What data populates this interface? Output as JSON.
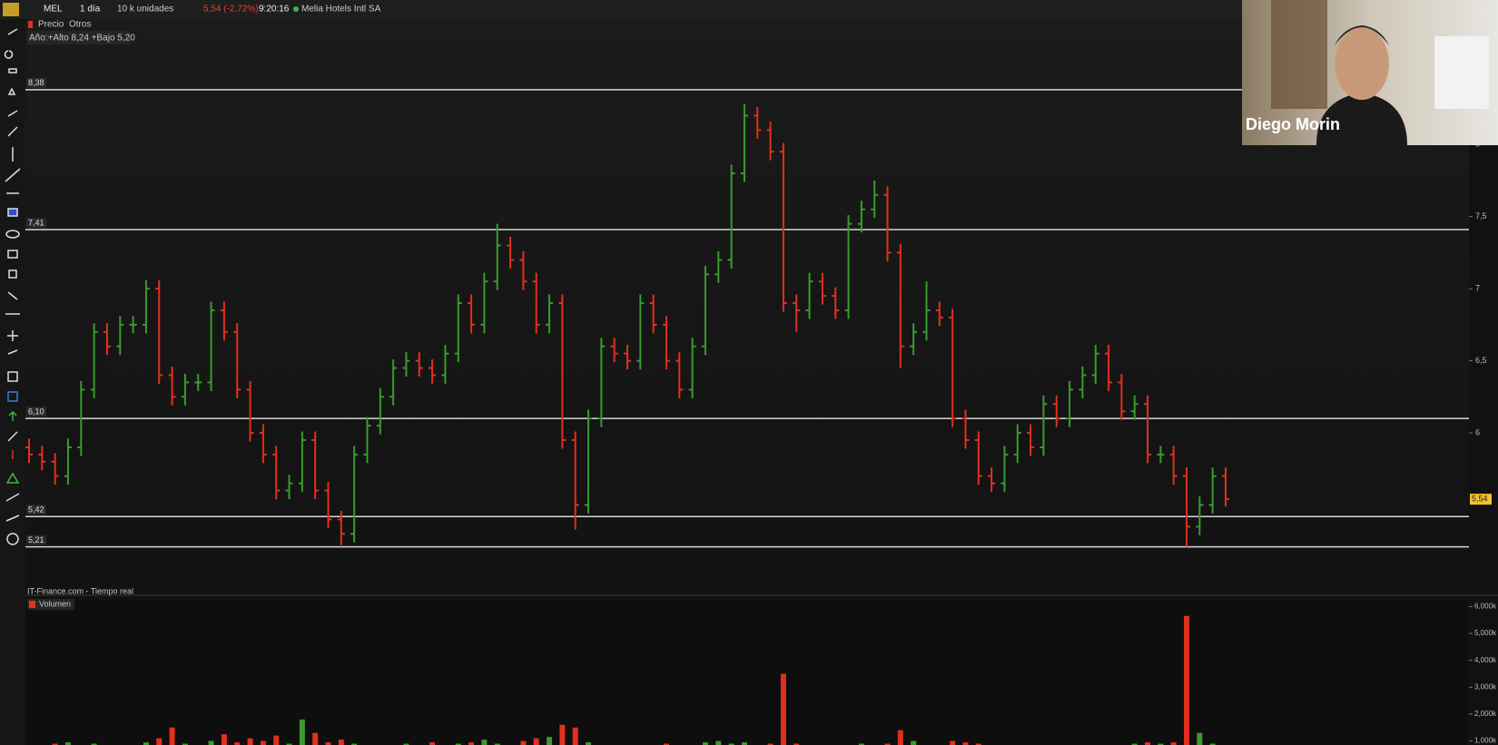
{
  "toolbar": {
    "symbol": "MEL",
    "interval": "1 día",
    "size": "10 k unidades",
    "price": "5,54 (-2,72%)",
    "time": "9:20:16",
    "name": "Melia Hotels Intl SA"
  },
  "tabs": [
    "Precio",
    "Otros"
  ],
  "chart_data": {
    "type": "ohlc",
    "annotation": "Año:+Alto 8,24 +Bajo 5,20",
    "footer": "IT-Finance.com - Tiempo real",
    "ylim": [
      4.88,
      8.87
    ],
    "yticks": [
      6,
      {
        "value": 6.5,
        "label": "6,5"
      },
      7,
      {
        "value": 7.5,
        "label": "7,5"
      },
      8
    ],
    "levels": [
      {
        "value": 8.38,
        "label": "8,38"
      },
      {
        "value": 7.41,
        "label": "7,41"
      },
      {
        "value": 6.1,
        "label": "6,10"
      },
      {
        "value": 5.42,
        "label": "5,42"
      },
      {
        "value": 5.21,
        "label": "5,21"
      }
    ],
    "last": {
      "value": 5.54,
      "label": "5,54"
    },
    "up_color": "#3a9a2e",
    "down_color": "#e0301e",
    "level_color": "#d8d8d8",
    "candles": [
      [
        5.9,
        5.96,
        5.79,
        5.85
      ],
      [
        5.85,
        5.91,
        5.74,
        5.8
      ],
      [
        5.8,
        5.86,
        5.64,
        5.7
      ],
      [
        5.7,
        5.96,
        5.64,
        5.9
      ],
      [
        5.9,
        6.36,
        5.84,
        6.3
      ],
      [
        6.3,
        6.76,
        6.24,
        6.7
      ],
      [
        6.7,
        6.76,
        6.54,
        6.6
      ],
      [
        6.6,
        6.81,
        6.54,
        6.75
      ],
      [
        6.75,
        6.81,
        6.69,
        6.75
      ],
      [
        6.75,
        7.06,
        6.69,
        7.0
      ],
      [
        7.0,
        7.06,
        6.34,
        6.4
      ],
      [
        6.4,
        6.46,
        6.19,
        6.25
      ],
      [
        6.25,
        6.41,
        6.19,
        6.35
      ],
      [
        6.35,
        6.41,
        6.29,
        6.35
      ],
      [
        6.35,
        6.91,
        6.29,
        6.85
      ],
      [
        6.85,
        6.91,
        6.64,
        6.7
      ],
      [
        6.7,
        6.76,
        6.24,
        6.3
      ],
      [
        6.3,
        6.36,
        5.94,
        6.0
      ],
      [
        6.0,
        6.06,
        5.79,
        5.85
      ],
      [
        5.85,
        5.91,
        5.54,
        5.6
      ],
      [
        5.6,
        5.71,
        5.54,
        5.65
      ],
      [
        5.65,
        6.01,
        5.59,
        5.95
      ],
      [
        5.95,
        6.01,
        5.54,
        5.6
      ],
      [
        5.6,
        5.66,
        5.34,
        5.4
      ],
      [
        5.4,
        5.46,
        5.22,
        5.3
      ],
      [
        5.3,
        5.91,
        5.24,
        5.85
      ],
      [
        5.85,
        6.11,
        5.79,
        6.05
      ],
      [
        6.05,
        6.31,
        5.99,
        6.25
      ],
      [
        6.25,
        6.51,
        6.19,
        6.45
      ],
      [
        6.45,
        6.56,
        6.39,
        6.5
      ],
      [
        6.5,
        6.56,
        6.39,
        6.45
      ],
      [
        6.45,
        6.51,
        6.34,
        6.4
      ],
      [
        6.4,
        6.61,
        6.34,
        6.55
      ],
      [
        6.55,
        6.96,
        6.49,
        6.9
      ],
      [
        6.9,
        6.96,
        6.69,
        6.75
      ],
      [
        6.75,
        7.11,
        6.69,
        7.05
      ],
      [
        7.05,
        7.45,
        6.99,
        7.3
      ],
      [
        7.3,
        7.36,
        7.14,
        7.2
      ],
      [
        7.2,
        7.26,
        6.99,
        7.05
      ],
      [
        7.05,
        7.11,
        6.69,
        6.75
      ],
      [
        6.75,
        6.96,
        6.69,
        6.9
      ],
      [
        6.9,
        6.96,
        5.89,
        5.95
      ],
      [
        5.95,
        6.01,
        5.33,
        5.5
      ],
      [
        5.5,
        6.16,
        5.44,
        6.1
      ],
      [
        6.1,
        6.66,
        6.04,
        6.6
      ],
      [
        6.6,
        6.66,
        6.49,
        6.55
      ],
      [
        6.55,
        6.61,
        6.44,
        6.5
      ],
      [
        6.5,
        6.96,
        6.44,
        6.9
      ],
      [
        6.9,
        6.96,
        6.69,
        6.75
      ],
      [
        6.75,
        6.81,
        6.44,
        6.5
      ],
      [
        6.5,
        6.56,
        6.24,
        6.3
      ],
      [
        6.3,
        6.66,
        6.24,
        6.6
      ],
      [
        6.6,
        7.16,
        6.54,
        7.1
      ],
      [
        7.1,
        7.26,
        7.04,
        7.2
      ],
      [
        7.2,
        7.86,
        7.14,
        7.8
      ],
      [
        7.8,
        8.28,
        7.74,
        8.2
      ],
      [
        8.2,
        8.26,
        8.04,
        8.1
      ],
      [
        8.1,
        8.16,
        7.89,
        7.95
      ],
      [
        7.95,
        8.01,
        6.84,
        6.9
      ],
      [
        6.9,
        6.96,
        6.7,
        6.85
      ],
      [
        6.85,
        7.11,
        6.79,
        7.05
      ],
      [
        7.05,
        7.11,
        6.89,
        6.95
      ],
      [
        6.95,
        7.01,
        6.79,
        6.85
      ],
      [
        6.85,
        7.51,
        6.79,
        7.45
      ],
      [
        7.45,
        7.61,
        7.39,
        7.55
      ],
      [
        7.55,
        7.75,
        7.49,
        7.65
      ],
      [
        7.65,
        7.71,
        7.19,
        7.25
      ],
      [
        7.25,
        7.31,
        6.45,
        6.6
      ],
      [
        6.6,
        6.76,
        6.54,
        6.7
      ],
      [
        6.7,
        7.05,
        6.64,
        6.85
      ],
      [
        6.85,
        6.91,
        6.74,
        6.8
      ],
      [
        6.8,
        6.86,
        6.04,
        6.1
      ],
      [
        6.1,
        6.16,
        5.89,
        5.95
      ],
      [
        5.95,
        6.01,
        5.64,
        5.7
      ],
      [
        5.7,
        5.76,
        5.59,
        5.65
      ],
      [
        5.65,
        5.91,
        5.59,
        5.85
      ],
      [
        5.85,
        6.06,
        5.79,
        6.0
      ],
      [
        6.0,
        6.06,
        5.84,
        5.9
      ],
      [
        5.9,
        6.26,
        5.84,
        6.2
      ],
      [
        6.2,
        6.26,
        6.04,
        6.1
      ],
      [
        6.1,
        6.36,
        6.04,
        6.3
      ],
      [
        6.3,
        6.46,
        6.24,
        6.4
      ],
      [
        6.4,
        6.61,
        6.34,
        6.55
      ],
      [
        6.55,
        6.61,
        6.29,
        6.35
      ],
      [
        6.35,
        6.41,
        6.09,
        6.15
      ],
      [
        6.15,
        6.26,
        6.09,
        6.2
      ],
      [
        6.2,
        6.26,
        5.79,
        5.85
      ],
      [
        5.85,
        5.91,
        5.79,
        5.85
      ],
      [
        5.85,
        5.91,
        5.64,
        5.7
      ],
      [
        5.7,
        5.76,
        5.21,
        5.35
      ],
      [
        5.35,
        5.56,
        5.29,
        5.5
      ],
      [
        5.5,
        5.76,
        5.44,
        5.7
      ],
      [
        5.7,
        5.76,
        5.49,
        5.54
      ]
    ],
    "volume": {
      "name": "Volumen",
      "ylim": [
        850,
        6250
      ],
      "yticks": [
        {
          "value": 1000,
          "label": "1,000k"
        },
        {
          "value": 2000,
          "label": "2,000k"
        },
        {
          "value": 3000,
          "label": "3,000k"
        },
        {
          "value": 4000,
          "label": "4,000k"
        },
        {
          "value": 5000,
          "label": "5,000k"
        },
        {
          "value": 6000,
          "label": "6,000k"
        }
      ],
      "values": [
        700,
        850,
        900,
        950,
        800,
        900,
        850,
        750,
        800,
        950,
        1100,
        1500,
        900,
        800,
        1000,
        1250,
        950,
        1100,
        1000,
        1200,
        900,
        1800,
        1300,
        950,
        1050,
        900,
        850,
        800,
        750,
        900,
        850,
        950,
        800,
        900,
        950,
        1050,
        900,
        850,
        1000,
        1100,
        1150,
        1600,
        1500,
        950,
        850,
        800,
        750,
        800,
        850,
        900,
        850,
        800,
        950,
        1000,
        900,
        950,
        850,
        900,
        3500,
        900,
        800,
        750,
        800,
        850,
        900,
        800,
        900,
        1400,
        1000,
        850,
        800,
        1000,
        950,
        900,
        850,
        800,
        750,
        800,
        850,
        800,
        750,
        800,
        850,
        800,
        850,
        900,
        950,
        900,
        950,
        5650,
        1300,
        900,
        800
      ]
    }
  },
  "webcam": {
    "name": "Diego Morin"
  }
}
